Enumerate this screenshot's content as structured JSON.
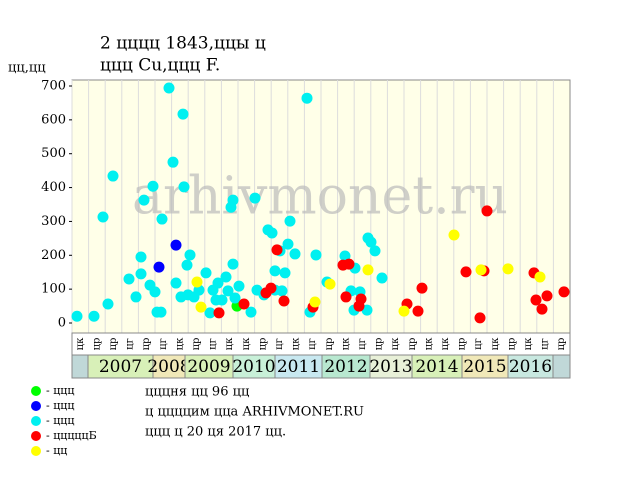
{
  "chart_data": {
    "type": "scatter",
    "title": "2 цццц 1843,ццы ц",
    "subtitle": "ццц Cu,ццц F.",
    "y_label": "цц,цц",
    "watermark": "arhivmonet.ru",
    "xlim": [
      0,
      498
    ],
    "ylim": [
      0,
      700
    ],
    "yticks": [
      0,
      100,
      200,
      300,
      400,
      500,
      600,
      700
    ],
    "grid": true,
    "columns": [
      "цк",
      "цр",
      "цр",
      "цг",
      "цр",
      "цг",
      "цк",
      "цр",
      "цг",
      "цк",
      "цк",
      "цр",
      "цг",
      "цк",
      "цг",
      "цр",
      "цк",
      "цг",
      "цр",
      "цк",
      "цр",
      "цк",
      "цк",
      "цр",
      "цг",
      "цк",
      "цр",
      "цк",
      "цг",
      "цр"
    ],
    "years": [
      "2007",
      "2008",
      "2009",
      "2010",
      "2011",
      "2012",
      "2013",
      "2014",
      "2015",
      "2016"
    ],
    "year_edges": [
      16,
      81,
      113,
      161,
      203,
      250,
      298,
      340,
      390,
      436,
      481
    ],
    "year_colors": [
      "#d8f0b8",
      "#f0e8b8",
      "#d8f0b8",
      "#c8f0d8",
      "#c8e8f0",
      "#b8e8d0",
      "#e8f0d8",
      "#d8f0b8",
      "#f0e8b8",
      "#c8e8e0"
    ],
    "series": [
      {
        "name": "- ццц",
        "color": "#00ff00",
        "x": [
          165
        ],
        "values": [
          50
        ]
      },
      {
        "name": "- ццц",
        "color": "#0000ff",
        "x": [
          87,
          104
        ],
        "values": [
          165,
          230
        ]
      },
      {
        "name": "- ццц",
        "color": "#00f0f0",
        "x": [
          5,
          22,
          31,
          36,
          41,
          57,
          64,
          69,
          69,
          72,
          78,
          81,
          83,
          85,
          89,
          90,
          97,
          101,
          104,
          109,
          111,
          112,
          115,
          116,
          118,
          122,
          127,
          134,
          138,
          141,
          144,
          146,
          150,
          154,
          156,
          159,
          161,
          161,
          163,
          167,
          179,
          183,
          185,
          192,
          196,
          200,
          203,
          203,
          208,
          210,
          213,
          216,
          218,
          223,
          235,
          238,
          244,
          255,
          273,
          279,
          282,
          283,
          288,
          295,
          296,
          299,
          303,
          310
        ],
        "values": [
          20,
          20,
          313,
          56,
          434,
          130,
          77,
          145,
          195,
          363,
          112,
          404,
          92,
          32,
          32,
          307,
          694,
          475,
          118,
          77,
          617,
          402,
          171,
          83,
          201,
          77,
          97,
          148,
          30,
          97,
          68,
          118,
          68,
          136,
          95,
          342,
          363,
          174,
          74,
          109,
          32,
          369,
          97,
          83,
          275,
          266,
          154,
          97,
          213,
          95,
          148,
          233,
          301,
          204,
          664,
          32,
          201,
          121,
          198,
          95,
          38,
          162,
          92,
          38,
          251,
          239,
          213,
          133
        ]
      },
      {
        "name": "- цццццБ",
        "color": "#ff0000",
        "x": [
          147,
          172,
          194,
          199,
          205,
          212,
          241,
          271,
          274,
          277,
          287,
          289,
          335,
          346,
          350,
          394,
          408,
          412,
          415,
          462,
          464,
          470,
          475,
          492
        ],
        "values": [
          30,
          56,
          89,
          103,
          216,
          65,
          47,
          171,
          77,
          174,
          50,
          71,
          56,
          35,
          103,
          151,
          15,
          154,
          331,
          148,
          68,
          41,
          80,
          92
        ]
      },
      {
        "name": "- цц",
        "color": "#ffff00",
        "x": [
          125,
          129,
          243,
          258,
          296,
          332,
          382,
          409,
          436,
          468
        ],
        "values": [
          121,
          47,
          62,
          115,
          157,
          35,
          260,
          157,
          160,
          136
        ]
      }
    ],
    "notes": [
      "цццня цц 96 цц",
      "ц ццццим ццa ARHIVMONET.RU",
      "ццц ц 20 ця 2017 цц."
    ]
  }
}
